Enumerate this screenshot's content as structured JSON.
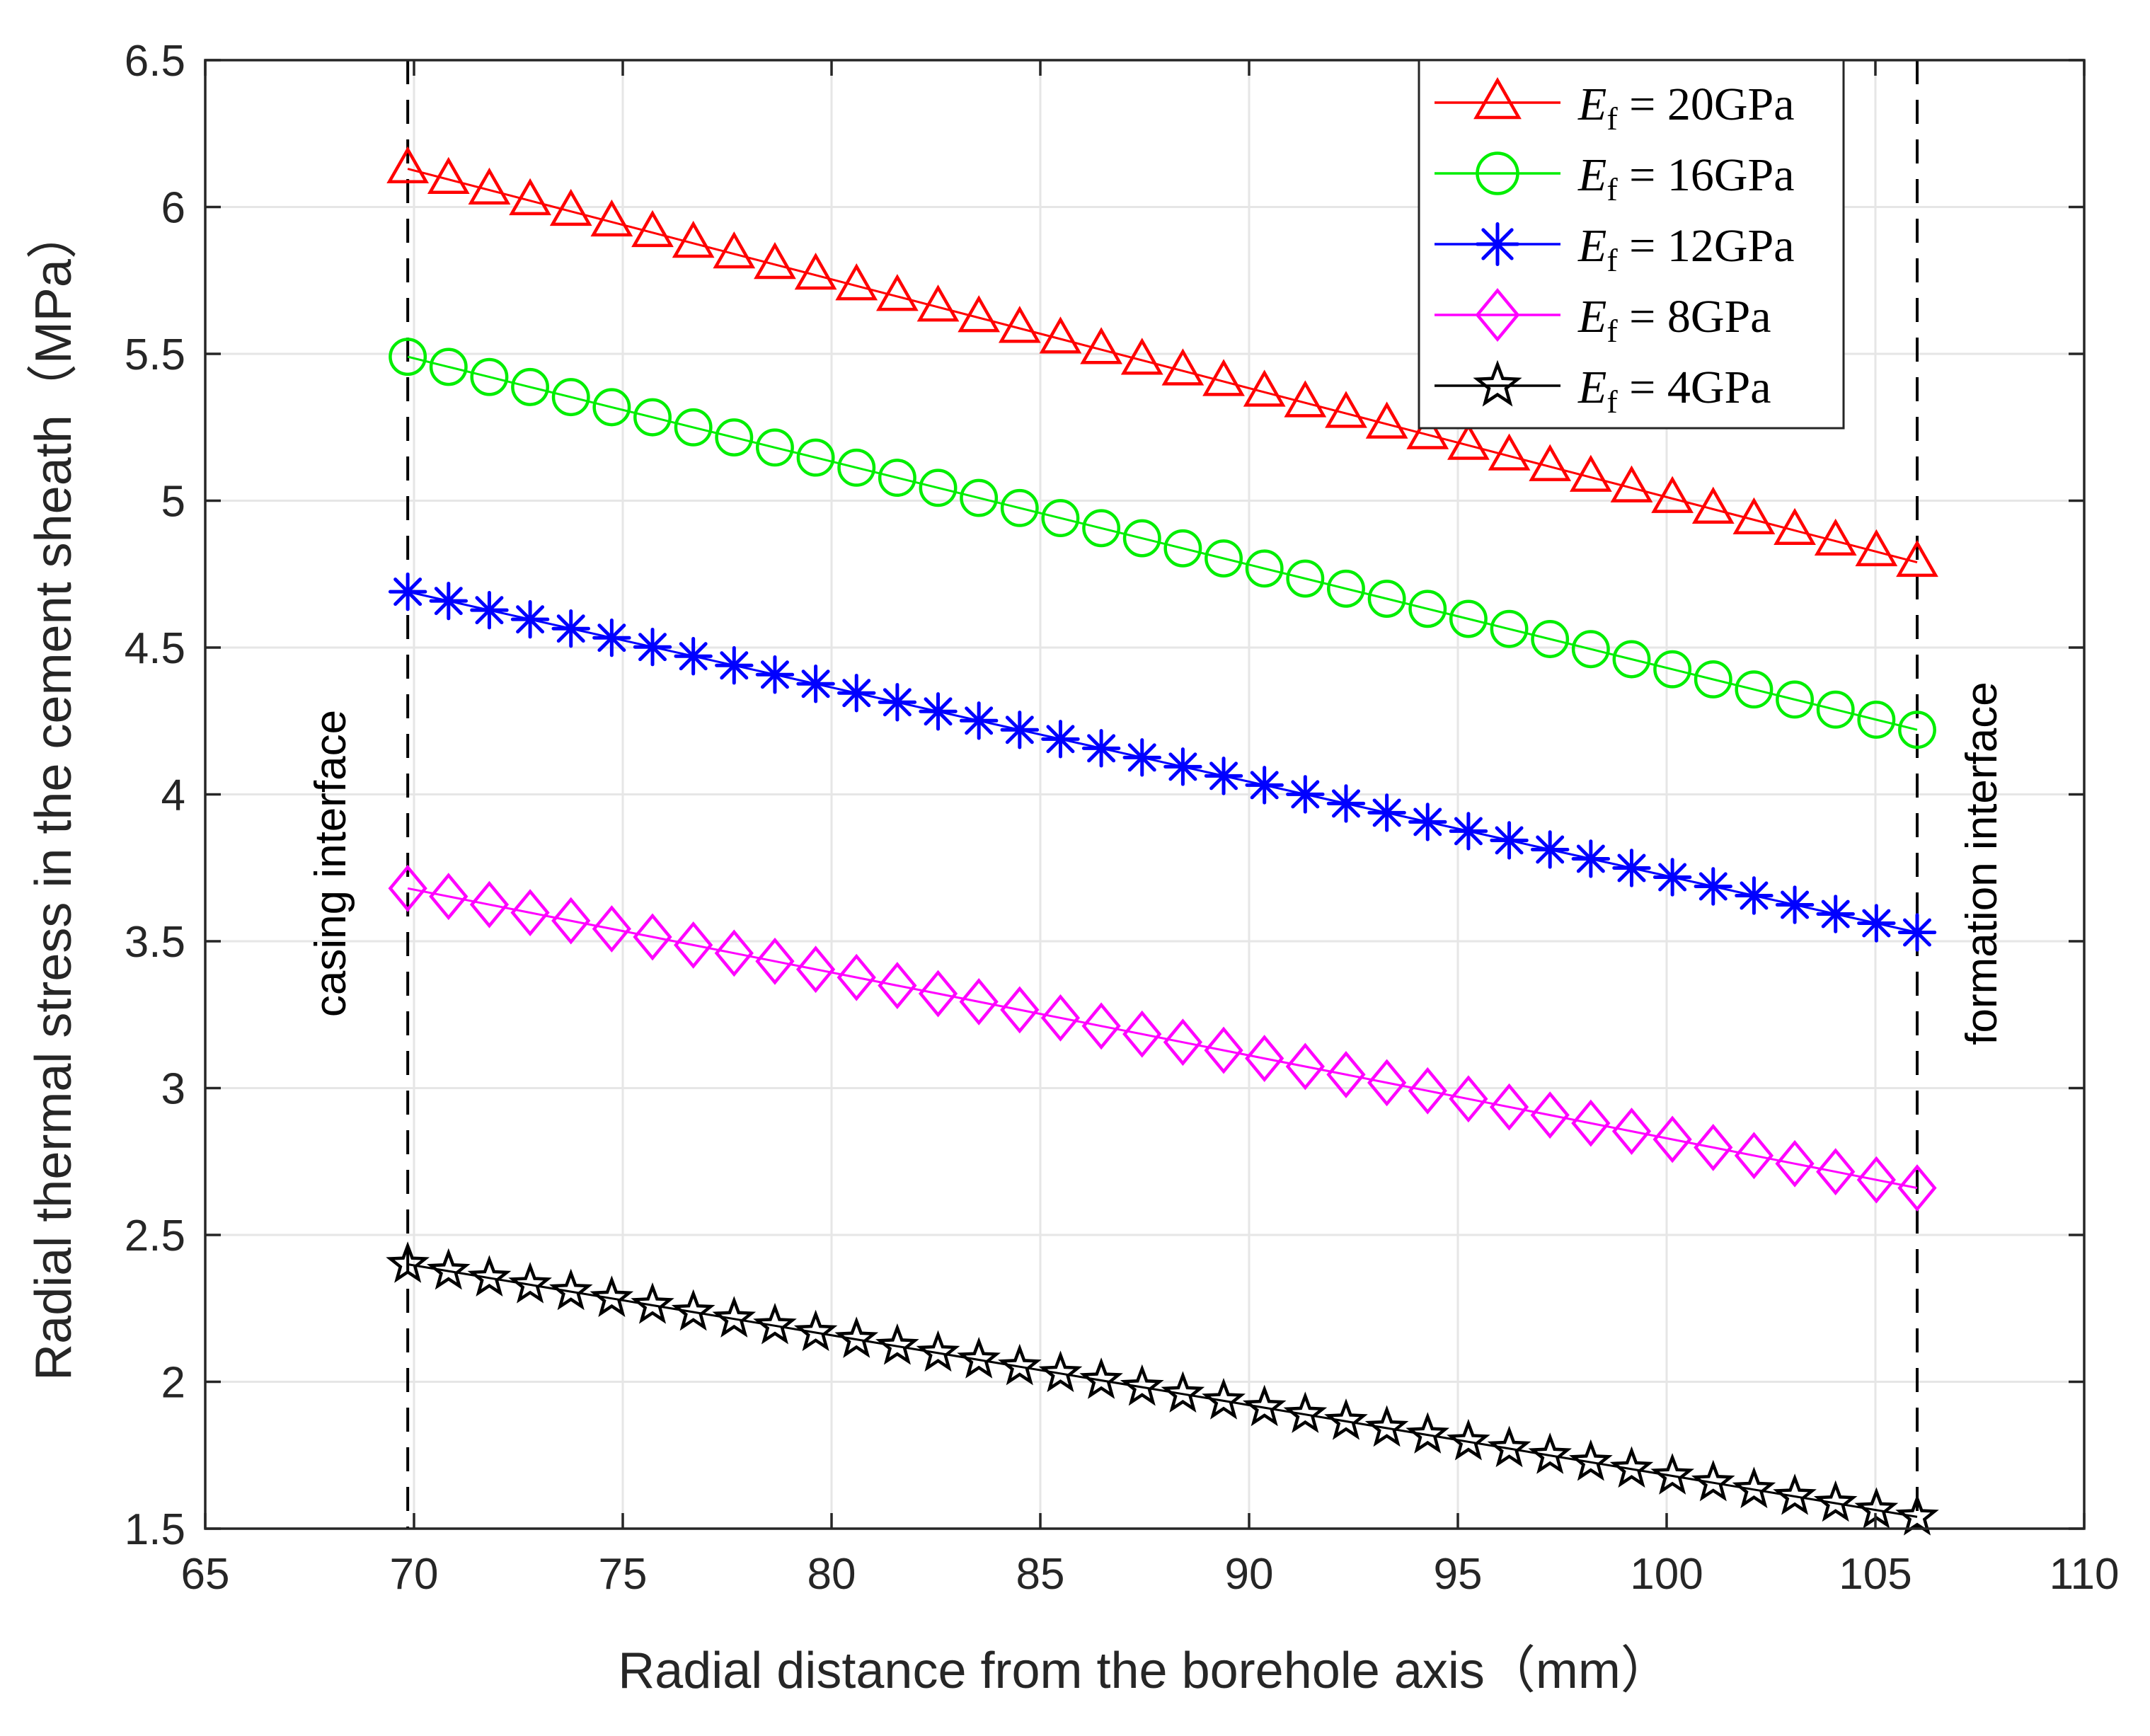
{
  "chart_data": {
    "type": "line",
    "xlabel": "Radial distance from the borehole axis（mm）",
    "ylabel": "Radial thermal stress in the cement sheath（MPa）",
    "xlim": [
      65,
      110
    ],
    "ylim": [
      1.5,
      6.5
    ],
    "xticks": [
      "65",
      "70",
      "75",
      "80",
      "85",
      "90",
      "95",
      "100",
      "105",
      "110"
    ],
    "yticks": [
      "1.5",
      "2",
      "2.5",
      "3",
      "3.5",
      "4",
      "4.5",
      "5",
      "5.5",
      "6",
      "6.5"
    ],
    "grid": true,
    "legend_position": "top-right",
    "x_start": 69.85,
    "x_end": 106.0,
    "num_points": 38,
    "series": [
      {
        "name": "E_f = 20GPa",
        "legend_prefix": "E",
        "legend_sub": "f",
        "legend_value": " = 20GPa",
        "color": "#ff0000",
        "marker": "triangle",
        "start": 6.13,
        "end": 4.79
      },
      {
        "name": "E_f = 16GPa",
        "legend_prefix": "E",
        "legend_sub": "f",
        "legend_value": " = 16GPa",
        "color": "#00ee00",
        "marker": "circle",
        "start": 5.49,
        "end": 4.22
      },
      {
        "name": "E_f = 12GPa",
        "legend_prefix": "E",
        "legend_sub": "f",
        "legend_value": " = 12GPa",
        "color": "#0000ff",
        "marker": "asterisk",
        "start": 4.69,
        "end": 3.53
      },
      {
        "name": "E_f = 8GPa",
        "legend_prefix": "E",
        "legend_sub": "f",
        "legend_value": " = 8GPa",
        "color": "#ff00ff",
        "marker": "diamond",
        "start": 3.68,
        "end": 2.66
      },
      {
        "name": "E_f = 4GPa",
        "legend_prefix": "E",
        "legend_sub": "f",
        "legend_value": " = 4GPa",
        "color": "#000000",
        "marker": "star",
        "start": 2.4,
        "end": 1.54
      }
    ],
    "reference_lines": [
      {
        "x": 69.85,
        "label": "casing interface"
      },
      {
        "x": 106.0,
        "label": "formation interface"
      }
    ]
  }
}
